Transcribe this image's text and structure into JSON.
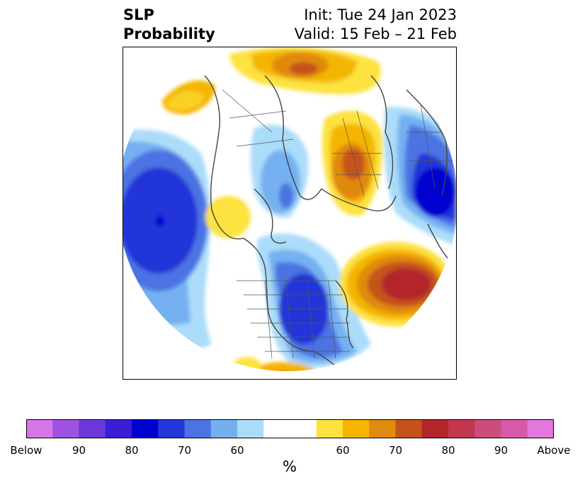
{
  "title": {
    "left_line1": "SLP",
    "left_line2": "Probability",
    "right_line1": "Init: Tue 24 Jan 2023",
    "right_line2": "Valid: 15 Feb – 21 Feb"
  },
  "colorbar": {
    "unit": "%",
    "colors": [
      "#d675e8",
      "#9f52e0",
      "#6a38d8",
      "#3a1ed6",
      "#0000cf",
      "#2336d8",
      "#4b73e2",
      "#74b0f0",
      "#abdcf9",
      "#ffffff",
      "#ffffff",
      "#fde23f",
      "#f4b500",
      "#e08a0f",
      "#c4521a",
      "#b2252a",
      "#c2364e",
      "#cb4d7c",
      "#d75aaa",
      "#e377dd"
    ],
    "tick_labels": [
      "Below",
      "90",
      "80",
      "70",
      "60",
      "60",
      "70",
      "80",
      "90",
      "Above"
    ]
  }
}
